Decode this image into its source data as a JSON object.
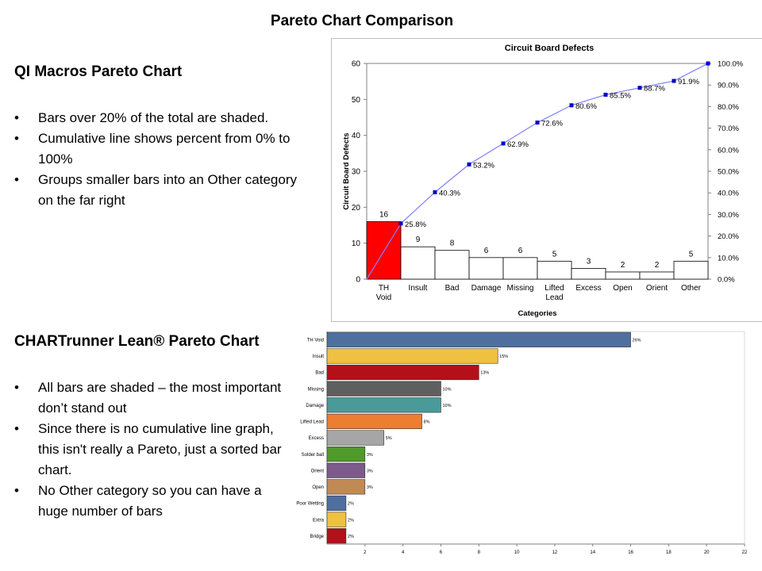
{
  "slide": {
    "title": "Pareto Chart Comparison"
  },
  "left": {
    "qi": {
      "heading": "QI Macros Pareto Chart",
      "bullets": [
        "Bars over 20% of the total are shaded.",
        "Cumulative line shows percent from 0% to 100%",
        "Groups smaller bars into an Other category on the far right"
      ]
    },
    "ct": {
      "heading": "CHARTrunner Lean® Pareto Chart",
      "bullets": [
        "All bars are shaded – the most important don’t stand out",
        "Since there is no cumulative line graph,  this isn't really a Pareto, just a sorted bar chart.",
        "No Other category so you can have a huge number of bars"
      ]
    }
  },
  "chart_data": [
    {
      "type": "bar",
      "title": "Circuit Board Defects",
      "xlabel": "Categories",
      "ylabel": "Circuit Board Defects",
      "categories": [
        "TH Void",
        "Insult",
        "Bad",
        "Damage",
        "Missing",
        "Lifted Lead",
        "Excess",
        "Open",
        "Orient",
        "Other"
      ],
      "values": [
        16,
        9,
        8,
        6,
        6,
        5,
        3,
        2,
        2,
        5
      ],
      "cumulative_percent": [
        25.8,
        40.3,
        53.2,
        62.9,
        72.6,
        80.6,
        85.5,
        88.7,
        91.9,
        100.0
      ],
      "cumulative_labels": [
        "25.8%",
        "40.3%",
        "53.2%",
        "62.9%",
        "72.6%",
        "80.6%",
        "85.5%",
        "88.7%",
        "91.9%",
        ""
      ],
      "ylim": [
        0,
        60
      ],
      "yticks": [
        "0",
        "10",
        "20",
        "30",
        "40",
        "50",
        "60"
      ],
      "y2lim": [
        0,
        100
      ],
      "y2ticks": [
        "0.0%",
        "10.0%",
        "20.0%",
        "30.0%",
        "40.0%",
        "50.0%",
        "60.0%",
        "70.0%",
        "80.0%",
        "90.0%",
        "100.0%"
      ],
      "highlight_color": "#ff0000",
      "bar_color": "#ffffff",
      "line_color": "#7f7fff",
      "marker_color": "#0000cc",
      "grid": false
    },
    {
      "type": "bar",
      "orientation": "horizontal",
      "categories": [
        "TH Void",
        "Insult",
        "Bad",
        "Missing",
        "Damage",
        "Lifted Lead",
        "Excess",
        "Solder ball",
        "Orient",
        "Open",
        "Poor Wetting",
        "Extra",
        "Bridge"
      ],
      "values": [
        16,
        9,
        8,
        6,
        6,
        5,
        3,
        2,
        2,
        2,
        1,
        1,
        1
      ],
      "value_labels": [
        "26%",
        "15%",
        "13%",
        "10%",
        "10%",
        "8%",
        "5%",
        "3%",
        "3%",
        "3%",
        "2%",
        "2%",
        "2%"
      ],
      "colors": [
        "#4f6f9f",
        "#eec140",
        "#b4101a",
        "#5f5f5f",
        "#4a9a9a",
        "#ed7d31",
        "#a6a6a6",
        "#4f9a2a",
        "#7c5b8c",
        "#c08a55",
        "#4f6f9f",
        "#eec140",
        "#b4101a"
      ],
      "xlim": [
        0,
        22
      ],
      "xticks": [
        "2",
        "4",
        "6",
        "8",
        "10",
        "12",
        "14",
        "16",
        "18",
        "20",
        "22"
      ],
      "grid": false
    }
  ]
}
